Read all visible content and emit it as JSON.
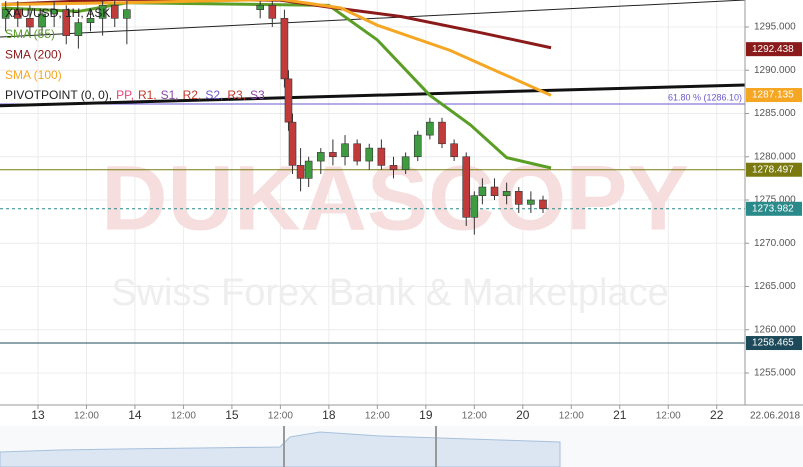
{
  "chart_data": {
    "type": "candlestick",
    "title": "XAU/USD, 1H, ASK",
    "xlim": [
      -9.4,
      175
    ],
    "ylim": [
      1251.3,
      1298.12
    ],
    "grid": true,
    "xticks": [
      {
        "value": 0,
        "label": "13"
      },
      {
        "value": 12,
        "label": "12:00"
      },
      {
        "value": 24,
        "label": "14"
      },
      {
        "value": 36,
        "label": "12:00"
      },
      {
        "value": 48,
        "label": "15"
      },
      {
        "value": 60,
        "label": "12:00"
      },
      {
        "value": 72,
        "label": "18"
      },
      {
        "value": 84,
        "label": "12:00"
      },
      {
        "value": 96,
        "label": "19"
      },
      {
        "value": 108,
        "label": "12:00"
      },
      {
        "value": 120,
        "label": "20"
      },
      {
        "value": 132,
        "label": "12:00"
      },
      {
        "value": 144,
        "label": "21"
      },
      {
        "value": 156,
        "label": "12:00"
      },
      {
        "value": 168,
        "label": "22"
      }
    ],
    "date_label": "22.06.2018",
    "yticks": [
      {
        "value": 1255,
        "label": "1255.000"
      },
      {
        "value": 1260,
        "label": "1260.000"
      },
      {
        "value": 1265,
        "label": "1265.000"
      },
      {
        "value": 1270,
        "label": "1270.000"
      },
      {
        "value": 1275,
        "label": "1275.000"
      },
      {
        "value": 1280,
        "label": "1280.000"
      },
      {
        "value": 1285,
        "label": "1285.000"
      },
      {
        "value": 1290,
        "label": "1290.000"
      },
      {
        "value": 1295,
        "label": "1295.000"
      }
    ],
    "up_color": "#3f9b3f",
    "down_color": "#c23b3b",
    "candles": {
      "x": [
        -8,
        -5,
        -2,
        1,
        4,
        7,
        10,
        13,
        16,
        19,
        22,
        55,
        58,
        61,
        62,
        63,
        65,
        67,
        70,
        73,
        76,
        79,
        82,
        85,
        88,
        91,
        94,
        97,
        100,
        103,
        106,
        108,
        110,
        113,
        116,
        119,
        122,
        125
      ],
      "open": [
        1296,
        1297,
        1296,
        1295,
        1296.5,
        1297,
        1294,
        1295.5,
        1296,
        1297.5,
        1296,
        1297,
        1297.5,
        1296,
        1289,
        1284,
        1279,
        1277.5,
        1279.5,
        1280.5,
        1280,
        1281.5,
        1279.5,
        1281,
        1279,
        1278.5,
        1280,
        1282.5,
        1284,
        1281.5,
        1280,
        1273,
        1275.5,
        1276.5,
        1275.5,
        1276,
        1274.5,
        1275
      ],
      "high": [
        1298,
        1298,
        1297.5,
        1297,
        1298,
        1297.5,
        1296,
        1297,
        1298,
        1298,
        1298,
        1298,
        1298,
        1297,
        1290,
        1285,
        1281,
        1280,
        1281,
        1282,
        1282.5,
        1282,
        1281.5,
        1282,
        1280,
        1280.5,
        1283,
        1284.5,
        1284.5,
        1282,
        1280.5,
        1276,
        1277.5,
        1277.5,
        1277,
        1276.5,
        1276,
        1275.5
      ],
      "low": [
        1294.5,
        1295,
        1294,
        1294,
        1295,
        1293,
        1292.5,
        1294.5,
        1294,
        1295,
        1293,
        1296,
        1295,
        1288,
        1283,
        1278,
        1276,
        1276.5,
        1278,
        1279,
        1279,
        1279,
        1278.5,
        1278.5,
        1277.5,
        1278,
        1279.5,
        1282,
        1281,
        1279.5,
        1272,
        1271,
        1274.5,
        1275,
        1274.5,
        1273.5,
        1273.5,
        1273.5
      ],
      "close": [
        1297,
        1296,
        1295,
        1296.5,
        1297,
        1294,
        1295.5,
        1296,
        1297.5,
        1296,
        1297,
        1297.5,
        1296,
        1289,
        1284,
        1279,
        1277.5,
        1279.5,
        1280.5,
        1280,
        1281.5,
        1279.5,
        1281,
        1279,
        1278.5,
        1280,
        1282.5,
        1284,
        1281.5,
        1280,
        1273,
        1275.5,
        1276.5,
        1275.5,
        1276,
        1274.5,
        1275,
        1274
      ]
    },
    "series": [
      {
        "name": "SMA (55)",
        "color": "#5a9e26",
        "x": [
          -9,
          10,
          22,
          72,
          84,
          97,
          107,
          116,
          127
        ],
        "values": [
          1297.2,
          1296.8,
          1297.8,
          1297.5,
          1293.5,
          1287.1,
          1283.7,
          1279.9,
          1278.7
        ]
      },
      {
        "name": "SMA (200)",
        "color": "#8b1a1a",
        "x": [
          -9,
          20,
          60,
          72,
          90,
          110,
          127
        ],
        "values": [
          1297.6,
          1298.2,
          1298.1,
          1297.3,
          1296.2,
          1294.3,
          1292.6
        ]
      },
      {
        "name": "SMA (100)",
        "color": "#f5a623",
        "x": [
          -9,
          20,
          60,
          75,
          84,
          102,
          114,
          127
        ],
        "values": [
          1297.6,
          1297.8,
          1298.2,
          1297.2,
          1295.2,
          1292.3,
          1289.8,
          1287.1
        ]
      }
    ],
    "pivot_legend": [
      {
        "text": "PIVOTPOINT (0, 0),",
        "color": "#222222"
      },
      {
        "text": "PP,",
        "color": "#e0457b"
      },
      {
        "text": "R1,",
        "color": "#c0392b"
      },
      {
        "text": "S1,",
        "color": "#8e44ad"
      },
      {
        "text": "R2,",
        "color": "#c0392b"
      },
      {
        "text": "S2,",
        "color": "#6a5acd"
      },
      {
        "text": "R3,",
        "color": "#c0392b"
      },
      {
        "text": "S3",
        "color": "#8e44ad"
      }
    ],
    "trendlines": [
      {
        "x": [
          -9.4,
          175
        ],
        "values": [
          1293.84,
          1298.12
        ],
        "color": "#222222",
        "width": 1
      },
      {
        "x": [
          -9.4,
          175
        ],
        "values": [
          1285.9,
          1288.3
        ],
        "color": "#111111",
        "width": 3
      }
    ],
    "fib_level": {
      "value": 1286.1,
      "label": "61.80 % (1286.10)",
      "color": "#6a5acd"
    },
    "price_tags": [
      {
        "value": 1292.438,
        "color": "#8b1a1a",
        "line": "none"
      },
      {
        "value": 1287.135,
        "color": "#f5a623",
        "line": "none"
      },
      {
        "value": 1278.497,
        "color": "#7a7a10",
        "line": "solid"
      },
      {
        "value": 1273.982,
        "color": "#2a8a8a",
        "line": "dashed"
      },
      {
        "value": 1258.465,
        "color": "#1d4a5a",
        "line": "solid"
      }
    ]
  },
  "watermark": {
    "title": "DUKASCOPY",
    "subtitle": "Swiss Forex Bank & Marketplace"
  }
}
